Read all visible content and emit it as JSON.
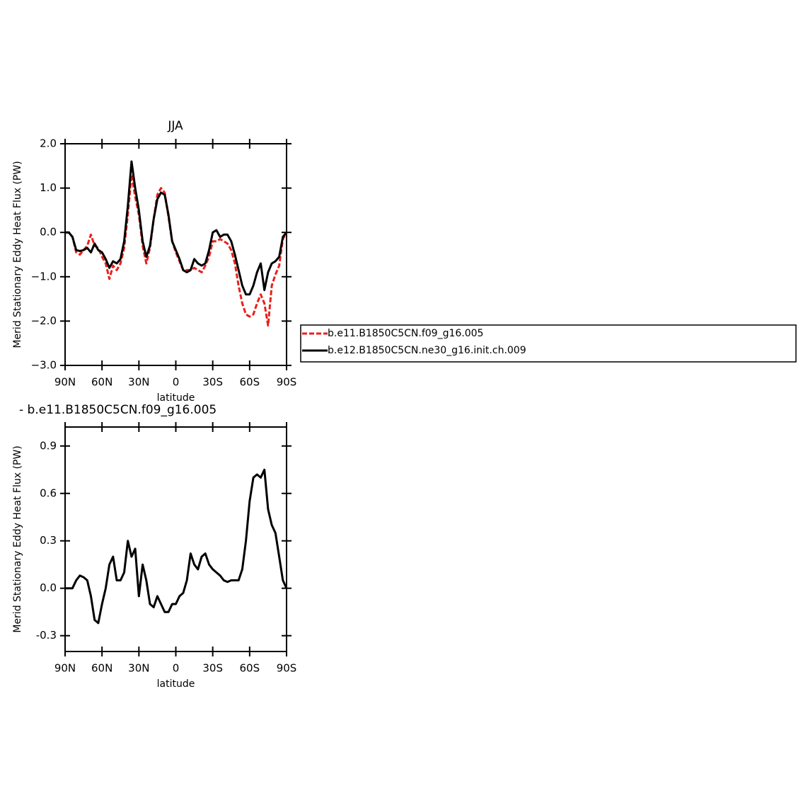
{
  "chart_data": [
    {
      "type": "line",
      "title": "JJA",
      "xlabel": "latitude",
      "ylabel": "Merid Stationary Eddy Heat Flux (PW)",
      "x": [
        90,
        87,
        84,
        81,
        78,
        75,
        72,
        69,
        66,
        63,
        60,
        57,
        54,
        51,
        48,
        45,
        42,
        39,
        36,
        33,
        30,
        27,
        24,
        21,
        18,
        15,
        12,
        9,
        6,
        3,
        0,
        -3,
        -6,
        -9,
        -12,
        -15,
        -18,
        -21,
        -24,
        -27,
        -30,
        -33,
        -36,
        -39,
        -42,
        -45,
        -48,
        -51,
        -54,
        -57,
        -60,
        -63,
        -66,
        -69,
        -72,
        -75,
        -78,
        -81,
        -84,
        -87,
        -90
      ],
      "xlim": [
        90,
        -90
      ],
      "xticks": [
        {
          "value": 90,
          "label": "90N"
        },
        {
          "value": 60,
          "label": "60N"
        },
        {
          "value": 30,
          "label": "30N"
        },
        0,
        {
          "value": -30,
          "label": "30S"
        },
        {
          "value": -60,
          "label": "60S"
        },
        {
          "value": -90,
          "label": "90S"
        }
      ],
      "ylim": [
        -3,
        2
      ],
      "yticks": [
        {
          "value": 2,
          "label": "2.0"
        },
        {
          "value": 1,
          "label": "1.0"
        },
        {
          "value": 0,
          "label": "0.0"
        },
        {
          "value": -1,
          "label": "−1.0"
        },
        {
          "value": -2,
          "label": "−2.0"
        },
        {
          "value": -3,
          "label": "−3.0"
        }
      ],
      "series": [
        {
          "name": "b.e11.B1850C5CN.f09_g16.005",
          "color": "#e8201c",
          "dashed": true,
          "values": [
            0,
            0,
            -0.1,
            -0.45,
            -0.5,
            -0.4,
            -0.3,
            -0.05,
            -0.3,
            -0.35,
            -0.55,
            -0.7,
            -1.05,
            -0.75,
            -0.85,
            -0.7,
            -0.35,
            0.4,
            1.3,
            0.8,
            0.4,
            -0.3,
            -0.7,
            -0.35,
            0.3,
            0.85,
            1.0,
            0.9,
            0.35,
            -0.2,
            -0.45,
            -0.65,
            -0.85,
            -0.85,
            -0.85,
            -0.8,
            -0.85,
            -0.9,
            -0.75,
            -0.55,
            -0.2,
            -0.2,
            -0.15,
            -0.2,
            -0.25,
            -0.4,
            -0.7,
            -1.2,
            -1.6,
            -1.85,
            -1.9,
            -1.85,
            -1.6,
            -1.4,
            -1.6,
            -2.1,
            -1.2,
            -0.95,
            -0.75,
            -0.15,
            0
          ]
        },
        {
          "name": "b.e12.B1850C5CN.ne30_g16.init.ch.009",
          "color": "#000000",
          "dashed": false,
          "values": [
            0,
            0,
            -0.1,
            -0.4,
            -0.42,
            -0.4,
            -0.35,
            -0.45,
            -0.25,
            -0.4,
            -0.45,
            -0.6,
            -0.8,
            -0.65,
            -0.7,
            -0.6,
            -0.2,
            0.6,
            1.6,
            1.0,
            0.5,
            -0.2,
            -0.55,
            -0.3,
            0.3,
            0.75,
            0.9,
            0.85,
            0.4,
            -0.2,
            -0.4,
            -0.6,
            -0.85,
            -0.9,
            -0.85,
            -0.6,
            -0.7,
            -0.75,
            -0.7,
            -0.4,
            0.0,
            0.05,
            -0.1,
            -0.05,
            -0.05,
            -0.2,
            -0.5,
            -0.85,
            -1.2,
            -1.4,
            -1.4,
            -1.2,
            -0.9,
            -0.7,
            -1.3,
            -0.9,
            -0.7,
            -0.65,
            -0.55,
            -0.1,
            0
          ]
        }
      ]
    },
    {
      "type": "line",
      "title": "- b.e11.B1850C5CN.f09_g16.005",
      "xlabel": "latitude",
      "ylabel": "Merid Stationary Eddy Heat Flux (PW)",
      "x": [
        90,
        87,
        84,
        81,
        78,
        75,
        72,
        69,
        66,
        63,
        60,
        57,
        54,
        51,
        48,
        45,
        42,
        39,
        36,
        33,
        30,
        27,
        24,
        21,
        18,
        15,
        12,
        9,
        6,
        3,
        0,
        -3,
        -6,
        -9,
        -12,
        -15,
        -18,
        -21,
        -24,
        -27,
        -30,
        -33,
        -36,
        -39,
        -42,
        -45,
        -48,
        -51,
        -54,
        -57,
        -60,
        -63,
        -66,
        -69,
        -72,
        -75,
        -78,
        -81,
        -84,
        -87,
        -90
      ],
      "xlim": [
        90,
        -90
      ],
      "xticks": [
        {
          "value": 90,
          "label": "90N"
        },
        {
          "value": 60,
          "label": "60N"
        },
        {
          "value": 30,
          "label": "30N"
        },
        0,
        {
          "value": -30,
          "label": "30S"
        },
        {
          "value": -60,
          "label": "60S"
        },
        {
          "value": -90,
          "label": "90S"
        }
      ],
      "ylim": [
        -0.4,
        1.02
      ],
      "yticks": [
        0.9,
        0.6,
        0.3,
        {
          "value": 0,
          "label": "0.0"
        },
        -0.3
      ],
      "series": [
        {
          "color": "#000000",
          "dashed": false,
          "values": [
            0,
            0,
            0,
            0.05,
            0.08,
            0.07,
            0.05,
            -0.05,
            -0.2,
            -0.22,
            -0.1,
            0.0,
            0.15,
            0.2,
            0.05,
            0.05,
            0.1,
            0.3,
            0.2,
            0.25,
            -0.05,
            0.15,
            0.05,
            -0.1,
            -0.12,
            -0.05,
            -0.1,
            -0.15,
            -0.15,
            -0.1,
            -0.1,
            -0.05,
            -0.03,
            0.05,
            0.22,
            0.15,
            0.12,
            0.2,
            0.22,
            0.15,
            0.12,
            0.1,
            0.08,
            0.05,
            0.04,
            0.05,
            0.05,
            0.05,
            0.12,
            0.3,
            0.55,
            0.7,
            0.72,
            0.7,
            0.75,
            0.5,
            0.4,
            0.35,
            0.2,
            0.05,
            0
          ]
        }
      ]
    }
  ]
}
